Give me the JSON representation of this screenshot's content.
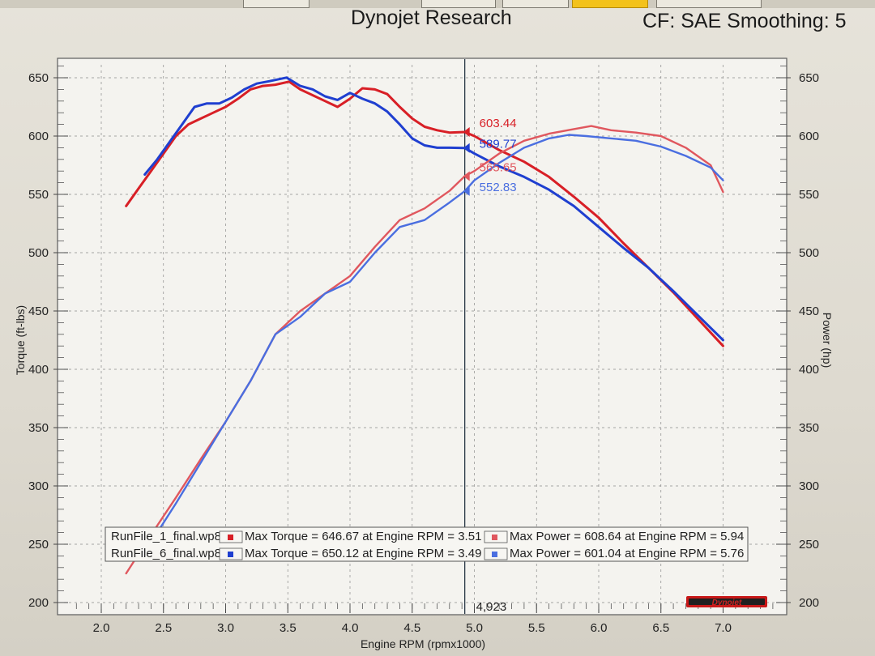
{
  "header": {
    "title": "Dynojet Research",
    "cf_label": "CF: SAE Smoothing: 5"
  },
  "colors": {
    "run1": "#d81f26",
    "run6": "#1f3fd0",
    "run1_power": "#e0575e",
    "run6_power": "#4a6ee0",
    "cursor": "#1a2a3a"
  },
  "cursor": {
    "rpm": 4.923,
    "label": "4,923",
    "values": [
      {
        "series": "run1_torque",
        "value": 603.44,
        "text": "603.44"
      },
      {
        "series": "run6_torque",
        "value": 589.77,
        "text": "589.77"
      },
      {
        "series": "run1_power",
        "value": 565.65,
        "text": "565.65"
      },
      {
        "series": "run6_power",
        "value": 552.83,
        "text": "552.83"
      }
    ]
  },
  "legend": {
    "rows": [
      {
        "file": "RunFile_1_final.wp8",
        "torque": "Max Torque = 646.67 at Engine RPM = 3.51",
        "power": "Max Power = 608.64 at Engine RPM = 5.94"
      },
      {
        "file": "RunFile_6_final.wp8",
        "torque": "Max Torque = 650.12 at Engine RPM = 3.49",
        "power": "Max Power = 601.04 at Engine RPM = 5.76"
      }
    ]
  },
  "logo_text": "Dynojet",
  "chart_data": {
    "type": "line",
    "title": "Dynojet Research",
    "xlabel": "Engine RPM (rpmx1000)",
    "ylabel_left": "Torque (ft-lbs)",
    "ylabel_right": "Power (hp)",
    "xlim": [
      1.8,
      7.4
    ],
    "ylim": [
      200,
      660
    ],
    "x_ticks": [
      "2.0",
      "2.5",
      "3.0",
      "3.5",
      "4.0",
      "4.5",
      "5.0",
      "5.5",
      "6.0",
      "6.5",
      "7.0"
    ],
    "y_ticks": [
      "200",
      "250",
      "300",
      "350",
      "400",
      "450",
      "500",
      "550",
      "600",
      "650"
    ],
    "grid": true,
    "series": [
      {
        "name": "RunFile_1_final.wp8",
        "quantity": "Torque",
        "color_key": "run1",
        "x": [
          2.2,
          2.3,
          2.4,
          2.5,
          2.6,
          2.7,
          2.8,
          2.9,
          3.0,
          3.1,
          3.2,
          3.3,
          3.4,
          3.51,
          3.6,
          3.7,
          3.8,
          3.9,
          4.0,
          4.1,
          4.2,
          4.3,
          4.4,
          4.5,
          4.6,
          4.7,
          4.8,
          4.923,
          5.0,
          5.2,
          5.4,
          5.6,
          5.8,
          6.0,
          6.2,
          6.4,
          6.6,
          6.8,
          7.0
        ],
        "values": [
          540,
          555,
          570,
          585,
          600,
          610,
          615,
          620,
          625,
          632,
          640,
          643,
          644,
          646.67,
          640,
          635,
          630,
          625,
          632,
          641,
          640,
          636,
          625,
          615,
          608,
          605,
          603,
          603.44,
          600,
          588,
          578,
          565,
          548,
          530,
          508,
          487,
          466,
          443,
          420
        ]
      },
      {
        "name": "RunFile_6_final.wp8",
        "quantity": "Torque",
        "color_key": "run6",
        "x": [
          2.35,
          2.45,
          2.55,
          2.65,
          2.75,
          2.85,
          2.95,
          3.05,
          3.15,
          3.25,
          3.35,
          3.49,
          3.6,
          3.7,
          3.8,
          3.9,
          4.0,
          4.1,
          4.2,
          4.3,
          4.4,
          4.5,
          4.6,
          4.7,
          4.8,
          4.923,
          5.0,
          5.2,
          5.4,
          5.6,
          5.8,
          6.0,
          6.2,
          6.4,
          6.6,
          6.8,
          7.0
        ],
        "values": [
          567,
          580,
          595,
          610,
          625,
          628,
          628,
          633,
          640,
          645,
          647,
          650.12,
          643,
          640,
          634,
          631,
          637,
          632,
          628,
          621,
          610,
          598,
          592,
          590,
          590,
          589.77,
          585,
          574,
          565,
          554,
          540,
          522,
          504,
          487,
          467,
          446,
          425
        ]
      },
      {
        "name": "RunFile_1_final.wp8",
        "quantity": "Power",
        "color_key": "run1_power",
        "x": [
          2.2,
          2.4,
          2.6,
          2.8,
          3.0,
          3.2,
          3.4,
          3.6,
          3.8,
          4.0,
          4.2,
          4.4,
          4.6,
          4.8,
          4.923,
          5.0,
          5.2,
          5.4,
          5.6,
          5.8,
          5.94,
          6.1,
          6.3,
          6.5,
          6.7,
          6.9,
          7.0
        ],
        "values": [
          225,
          258,
          290,
          323,
          355,
          390,
          430,
          450,
          465,
          480,
          505,
          528,
          538,
          553,
          565.65,
          570,
          585,
          596,
          602,
          606,
          608.64,
          605,
          603,
          600,
          590,
          575,
          552
        ]
      },
      {
        "name": "RunFile_6_final.wp8",
        "quantity": "Power",
        "color_key": "run6_power",
        "x": [
          2.45,
          2.6,
          2.8,
          3.0,
          3.2,
          3.4,
          3.6,
          3.8,
          4.0,
          4.2,
          4.4,
          4.6,
          4.8,
          4.923,
          5.0,
          5.2,
          5.4,
          5.6,
          5.76,
          5.9,
          6.1,
          6.3,
          6.5,
          6.7,
          6.9,
          7.0
        ],
        "values": [
          260,
          285,
          320,
          355,
          390,
          430,
          445,
          465,
          475,
          500,
          522,
          528,
          543,
          552.83,
          562,
          577,
          590,
          598,
          601.04,
          600,
          598,
          596,
          591,
          583,
          573,
          562
        ]
      }
    ]
  }
}
